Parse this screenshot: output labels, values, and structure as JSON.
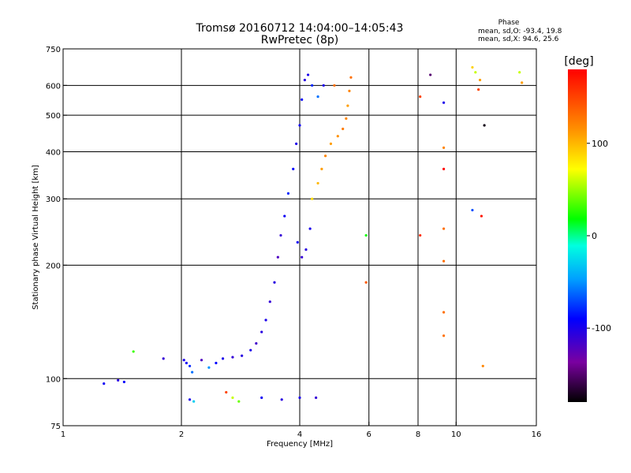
{
  "chart_data": {
    "type": "scatter",
    "title": "Tromsø 20160712 14:04:00–14:05:43",
    "subtitle": "RwPretec (8p)",
    "xlabel": "Frequency [MHz]",
    "ylabel": "Stationary phase Virtual Height [km]",
    "xscale": "log",
    "yscale": "log",
    "xlim": [
      1,
      16
    ],
    "ylim": [
      75,
      750
    ],
    "x_ticks": [
      1,
      2,
      4,
      6,
      8,
      10,
      16
    ],
    "y_ticks": [
      75,
      100,
      200,
      300,
      400,
      500,
      600,
      750
    ],
    "x_grid": [
      2,
      4,
      6,
      8,
      10
    ],
    "y_grid": [
      100,
      200,
      300,
      400,
      500,
      600
    ],
    "grid": true,
    "stats_header": "Phase",
    "stats_lines": [
      "mean, sd,O: -93.4, 19.8",
      "mean, sd,X:  94.6, 25.6"
    ],
    "colorbar": {
      "label": "[deg]",
      "range": [
        -180,
        180
      ],
      "ticks": [
        100,
        0,
        -100
      ]
    },
    "points": [
      {
        "x": 1.27,
        "y": 97,
        "phase": -95
      },
      {
        "x": 1.38,
        "y": 99,
        "phase": -105
      },
      {
        "x": 1.43,
        "y": 98,
        "phase": -92
      },
      {
        "x": 1.51,
        "y": 118,
        "phase": 30
      },
      {
        "x": 1.8,
        "y": 113,
        "phase": -110
      },
      {
        "x": 2.03,
        "y": 112,
        "phase": -100
      },
      {
        "x": 2.06,
        "y": 110,
        "phase": -95
      },
      {
        "x": 2.1,
        "y": 108,
        "phase": -80
      },
      {
        "x": 2.13,
        "y": 104,
        "phase": -60
      },
      {
        "x": 2.25,
        "y": 112,
        "phase": -120
      },
      {
        "x": 2.35,
        "y": 107,
        "phase": -50
      },
      {
        "x": 2.45,
        "y": 110,
        "phase": -90
      },
      {
        "x": 2.55,
        "y": 113,
        "phase": -100
      },
      {
        "x": 2.7,
        "y": 114,
        "phase": -110
      },
      {
        "x": 2.85,
        "y": 115,
        "phase": -105
      },
      {
        "x": 3.0,
        "y": 119,
        "phase": -100
      },
      {
        "x": 3.1,
        "y": 124,
        "phase": -115
      },
      {
        "x": 3.2,
        "y": 133,
        "phase": -105
      },
      {
        "x": 3.28,
        "y": 143,
        "phase": -100
      },
      {
        "x": 3.36,
        "y": 160,
        "phase": -110
      },
      {
        "x": 3.45,
        "y": 180,
        "phase": -105
      },
      {
        "x": 3.52,
        "y": 210,
        "phase": -120
      },
      {
        "x": 3.58,
        "y": 240,
        "phase": -110
      },
      {
        "x": 3.66,
        "y": 270,
        "phase": -95
      },
      {
        "x": 3.74,
        "y": 310,
        "phase": -80
      },
      {
        "x": 3.85,
        "y": 360,
        "phase": -90
      },
      {
        "x": 3.92,
        "y": 420,
        "phase": -100
      },
      {
        "x": 4.0,
        "y": 470,
        "phase": -95
      },
      {
        "x": 4.05,
        "y": 550,
        "phase": -90
      },
      {
        "x": 4.12,
        "y": 620,
        "phase": -105
      },
      {
        "x": 4.2,
        "y": 640,
        "phase": -100
      },
      {
        "x": 4.3,
        "y": 600,
        "phase": -80
      },
      {
        "x": 4.45,
        "y": 560,
        "phase": -60
      },
      {
        "x": 4.6,
        "y": 600,
        "phase": -100
      },
      {
        "x": 4.05,
        "y": 210,
        "phase": -110
      },
      {
        "x": 4.15,
        "y": 220,
        "phase": -105
      },
      {
        "x": 4.25,
        "y": 250,
        "phase": -100
      },
      {
        "x": 3.95,
        "y": 230,
        "phase": -95
      },
      {
        "x": 4.3,
        "y": 300,
        "phase": 85
      },
      {
        "x": 4.45,
        "y": 330,
        "phase": 100
      },
      {
        "x": 4.55,
        "y": 360,
        "phase": 110
      },
      {
        "x": 4.65,
        "y": 390,
        "phase": 120
      },
      {
        "x": 4.8,
        "y": 420,
        "phase": 110
      },
      {
        "x": 5.0,
        "y": 440,
        "phase": 115
      },
      {
        "x": 5.15,
        "y": 460,
        "phase": 125
      },
      {
        "x": 5.25,
        "y": 490,
        "phase": 120
      },
      {
        "x": 5.3,
        "y": 530,
        "phase": 110
      },
      {
        "x": 5.35,
        "y": 580,
        "phase": 120
      },
      {
        "x": 5.4,
        "y": 630,
        "phase": 130
      },
      {
        "x": 4.9,
        "y": 600,
        "phase": 130
      },
      {
        "x": 2.1,
        "y": 88,
        "phase": -100
      },
      {
        "x": 2.15,
        "y": 87,
        "phase": -30
      },
      {
        "x": 2.6,
        "y": 92,
        "phase": 150
      },
      {
        "x": 2.7,
        "y": 89,
        "phase": 60
      },
      {
        "x": 2.8,
        "y": 87,
        "phase": 40
      },
      {
        "x": 3.2,
        "y": 89,
        "phase": -95
      },
      {
        "x": 3.6,
        "y": 88,
        "phase": -105
      },
      {
        "x": 4.0,
        "y": 89,
        "phase": -100
      },
      {
        "x": 4.4,
        "y": 89,
        "phase": -110
      },
      {
        "x": 5.9,
        "y": 240,
        "phase": 20
      },
      {
        "x": 5.9,
        "y": 180,
        "phase": 140
      },
      {
        "x": 8.1,
        "y": 560,
        "phase": 150
      },
      {
        "x": 8.1,
        "y": 240,
        "phase": 160
      },
      {
        "x": 8.6,
        "y": 640,
        "phase": -150
      },
      {
        "x": 9.3,
        "y": 540,
        "phase": -100
      },
      {
        "x": 9.3,
        "y": 410,
        "phase": 120
      },
      {
        "x": 9.3,
        "y": 360,
        "phase": 180
      },
      {
        "x": 9.3,
        "y": 250,
        "phase": 130
      },
      {
        "x": 9.3,
        "y": 205,
        "phase": 130
      },
      {
        "x": 9.3,
        "y": 150,
        "phase": 130
      },
      {
        "x": 9.3,
        "y": 130,
        "phase": 130
      },
      {
        "x": 11.0,
        "y": 670,
        "phase": 90
      },
      {
        "x": 11.2,
        "y": 650,
        "phase": 60
      },
      {
        "x": 11.5,
        "y": 620,
        "phase": 110
      },
      {
        "x": 11.4,
        "y": 585,
        "phase": 150
      },
      {
        "x": 11.0,
        "y": 280,
        "phase": -70
      },
      {
        "x": 11.6,
        "y": 270,
        "phase": 170
      },
      {
        "x": 11.8,
        "y": 470,
        "phase": -175
      },
      {
        "x": 11.7,
        "y": 108,
        "phase": 120
      },
      {
        "x": 14.5,
        "y": 650,
        "phase": 60
      },
      {
        "x": 14.7,
        "y": 610,
        "phase": 110
      }
    ]
  }
}
